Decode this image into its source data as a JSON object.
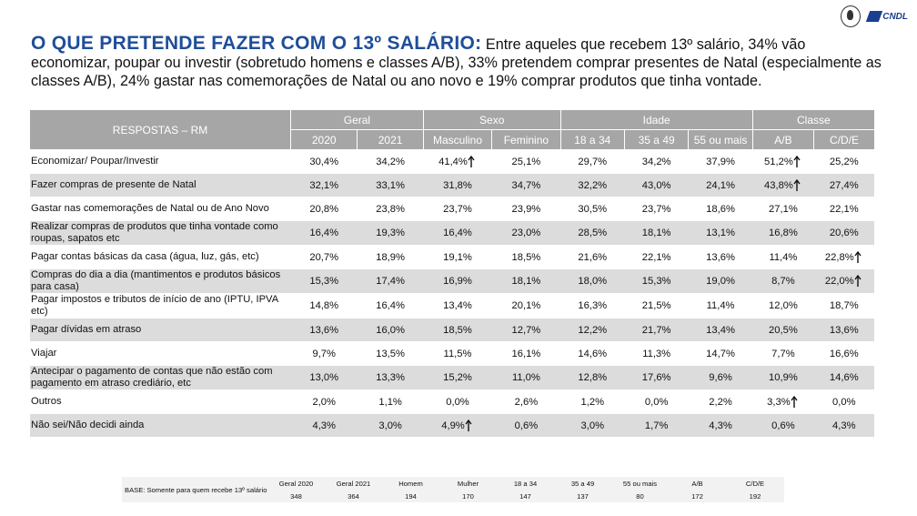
{
  "title": "O QUE PRETENDE FAZER COM O 13º SALÁRIO:",
  "summary": "Entre aqueles que recebem 13º salário, 34% vão economizar, poupar ou investir (sobretudo homens e classes A/B), 33% pretendem comprar presentes de Natal (especialmente as classes A/B), 24% gastar nas comemorações de Natal ou ano novo e 19% comprar produtos que tinha vontade.",
  "logos": {
    "left": "spc-logo-icon",
    "right_text": "CNDL"
  },
  "table": {
    "row_header": "RESPOSTAS – RM",
    "groups": [
      "Geral",
      "Sexo",
      "Idade",
      "Classe"
    ],
    "columns": [
      "2020",
      "2021",
      "Masculino",
      "Feminino",
      "18 a 34",
      "35 a 49",
      "55 ou mais",
      "A/B",
      "C/D/E"
    ],
    "rows": [
      {
        "label": "Economizar/ Poupar/Investir",
        "values": [
          "30,4%",
          "34,2%",
          "41,4%",
          "25,1%",
          "29,7%",
          "34,2%",
          "37,9%",
          "51,2%",
          "25,2%"
        ],
        "up": [
          false,
          false,
          true,
          false,
          false,
          false,
          false,
          true,
          false
        ]
      },
      {
        "label": "Fazer compras de presente de Natal",
        "values": [
          "32,1%",
          "33,1%",
          "31,8%",
          "34,7%",
          "32,2%",
          "43,0%",
          "24,1%",
          "43,8%",
          "27,4%"
        ],
        "up": [
          false,
          false,
          false,
          false,
          false,
          false,
          false,
          true,
          false
        ]
      },
      {
        "label": "Gastar nas comemorações de Natal ou de Ano Novo",
        "values": [
          "20,8%",
          "23,8%",
          "23,7%",
          "23,9%",
          "30,5%",
          "23,7%",
          "18,6%",
          "27,1%",
          "22,1%"
        ],
        "up": [
          false,
          false,
          false,
          false,
          false,
          false,
          false,
          false,
          false
        ]
      },
      {
        "label": "Realizar compras de produtos que tinha vontade como roupas, sapatos etc",
        "values": [
          "16,4%",
          "19,3%",
          "16,4%",
          "23,0%",
          "28,5%",
          "18,1%",
          "13,1%",
          "16,8%",
          "20,6%"
        ],
        "up": [
          false,
          false,
          false,
          false,
          false,
          false,
          false,
          false,
          false
        ]
      },
      {
        "label": "Pagar contas básicas da casa (água, luz, gás, etc)",
        "values": [
          "20,7%",
          "18,9%",
          "19,1%",
          "18,5%",
          "21,6%",
          "22,1%",
          "13,6%",
          "11,4%",
          "22,8%"
        ],
        "up": [
          false,
          false,
          false,
          false,
          false,
          false,
          false,
          false,
          true
        ]
      },
      {
        "label": "Compras do dia a dia (mantimentos e produtos básicos para casa)",
        "values": [
          "15,3%",
          "17,4%",
          "16,9%",
          "18,1%",
          "18,0%",
          "15,3%",
          "19,0%",
          "8,7%",
          "22,0%"
        ],
        "up": [
          false,
          false,
          false,
          false,
          false,
          false,
          false,
          false,
          true
        ]
      },
      {
        "label": "Pagar impostos e tributos de início de ano (IPTU, IPVA etc)",
        "values": [
          "14,8%",
          "16,4%",
          "13,4%",
          "20,1%",
          "16,3%",
          "21,5%",
          "11,4%",
          "12,0%",
          "18,7%"
        ],
        "up": [
          false,
          false,
          false,
          false,
          false,
          false,
          false,
          false,
          false
        ]
      },
      {
        "label": "Pagar dívidas em atraso",
        "values": [
          "13,6%",
          "16,0%",
          "18,5%",
          "12,7%",
          "12,2%",
          "21,7%",
          "13,4%",
          "20,5%",
          "13,6%"
        ],
        "up": [
          false,
          false,
          false,
          false,
          false,
          false,
          false,
          false,
          false
        ]
      },
      {
        "label": "Viajar",
        "values": [
          "9,7%",
          "13,5%",
          "11,5%",
          "16,1%",
          "14,6%",
          "11,3%",
          "14,7%",
          "7,7%",
          "16,6%"
        ],
        "up": [
          false,
          false,
          false,
          false,
          false,
          false,
          false,
          false,
          false
        ]
      },
      {
        "label": "Antecipar o pagamento de contas que não estão com pagamento em atraso crediário, etc",
        "values": [
          "13,0%",
          "13,3%",
          "15,2%",
          "11,0%",
          "12,8%",
          "17,6%",
          "9,6%",
          "10,9%",
          "14,6%"
        ],
        "up": [
          false,
          false,
          false,
          false,
          false,
          false,
          false,
          false,
          false
        ]
      },
      {
        "label": "Outros",
        "values": [
          "2,0%",
          "1,1%",
          "0,0%",
          "2,6%",
          "1,2%",
          "0,0%",
          "2,2%",
          "3,3%",
          "0,0%"
        ],
        "up": [
          false,
          false,
          false,
          false,
          false,
          false,
          false,
          true,
          false
        ]
      },
      {
        "label": "Não sei/Não decidi ainda",
        "values": [
          "4,3%",
          "3,0%",
          "4,9%",
          "0,6%",
          "3,0%",
          "1,7%",
          "4,3%",
          "0,6%",
          "4,3%"
        ],
        "up": [
          false,
          false,
          true,
          false,
          false,
          false,
          false,
          false,
          false
        ]
      }
    ]
  },
  "base": {
    "label": "BASE: Somente para quem recebe 13º salário",
    "columns": [
      "Geral 2020",
      "Geral 2021",
      "Homem",
      "Mulher",
      "18 a 34",
      "35 a 49",
      "55 ou mais",
      "A/B",
      "C/D/E"
    ],
    "values": [
      "348",
      "364",
      "194",
      "170",
      "147",
      "137",
      "80",
      "172",
      "192"
    ]
  },
  "colors": {
    "title": "#1f4e99",
    "header_bg": "#a6a6a6",
    "row_alt": "#dcdcdc"
  }
}
